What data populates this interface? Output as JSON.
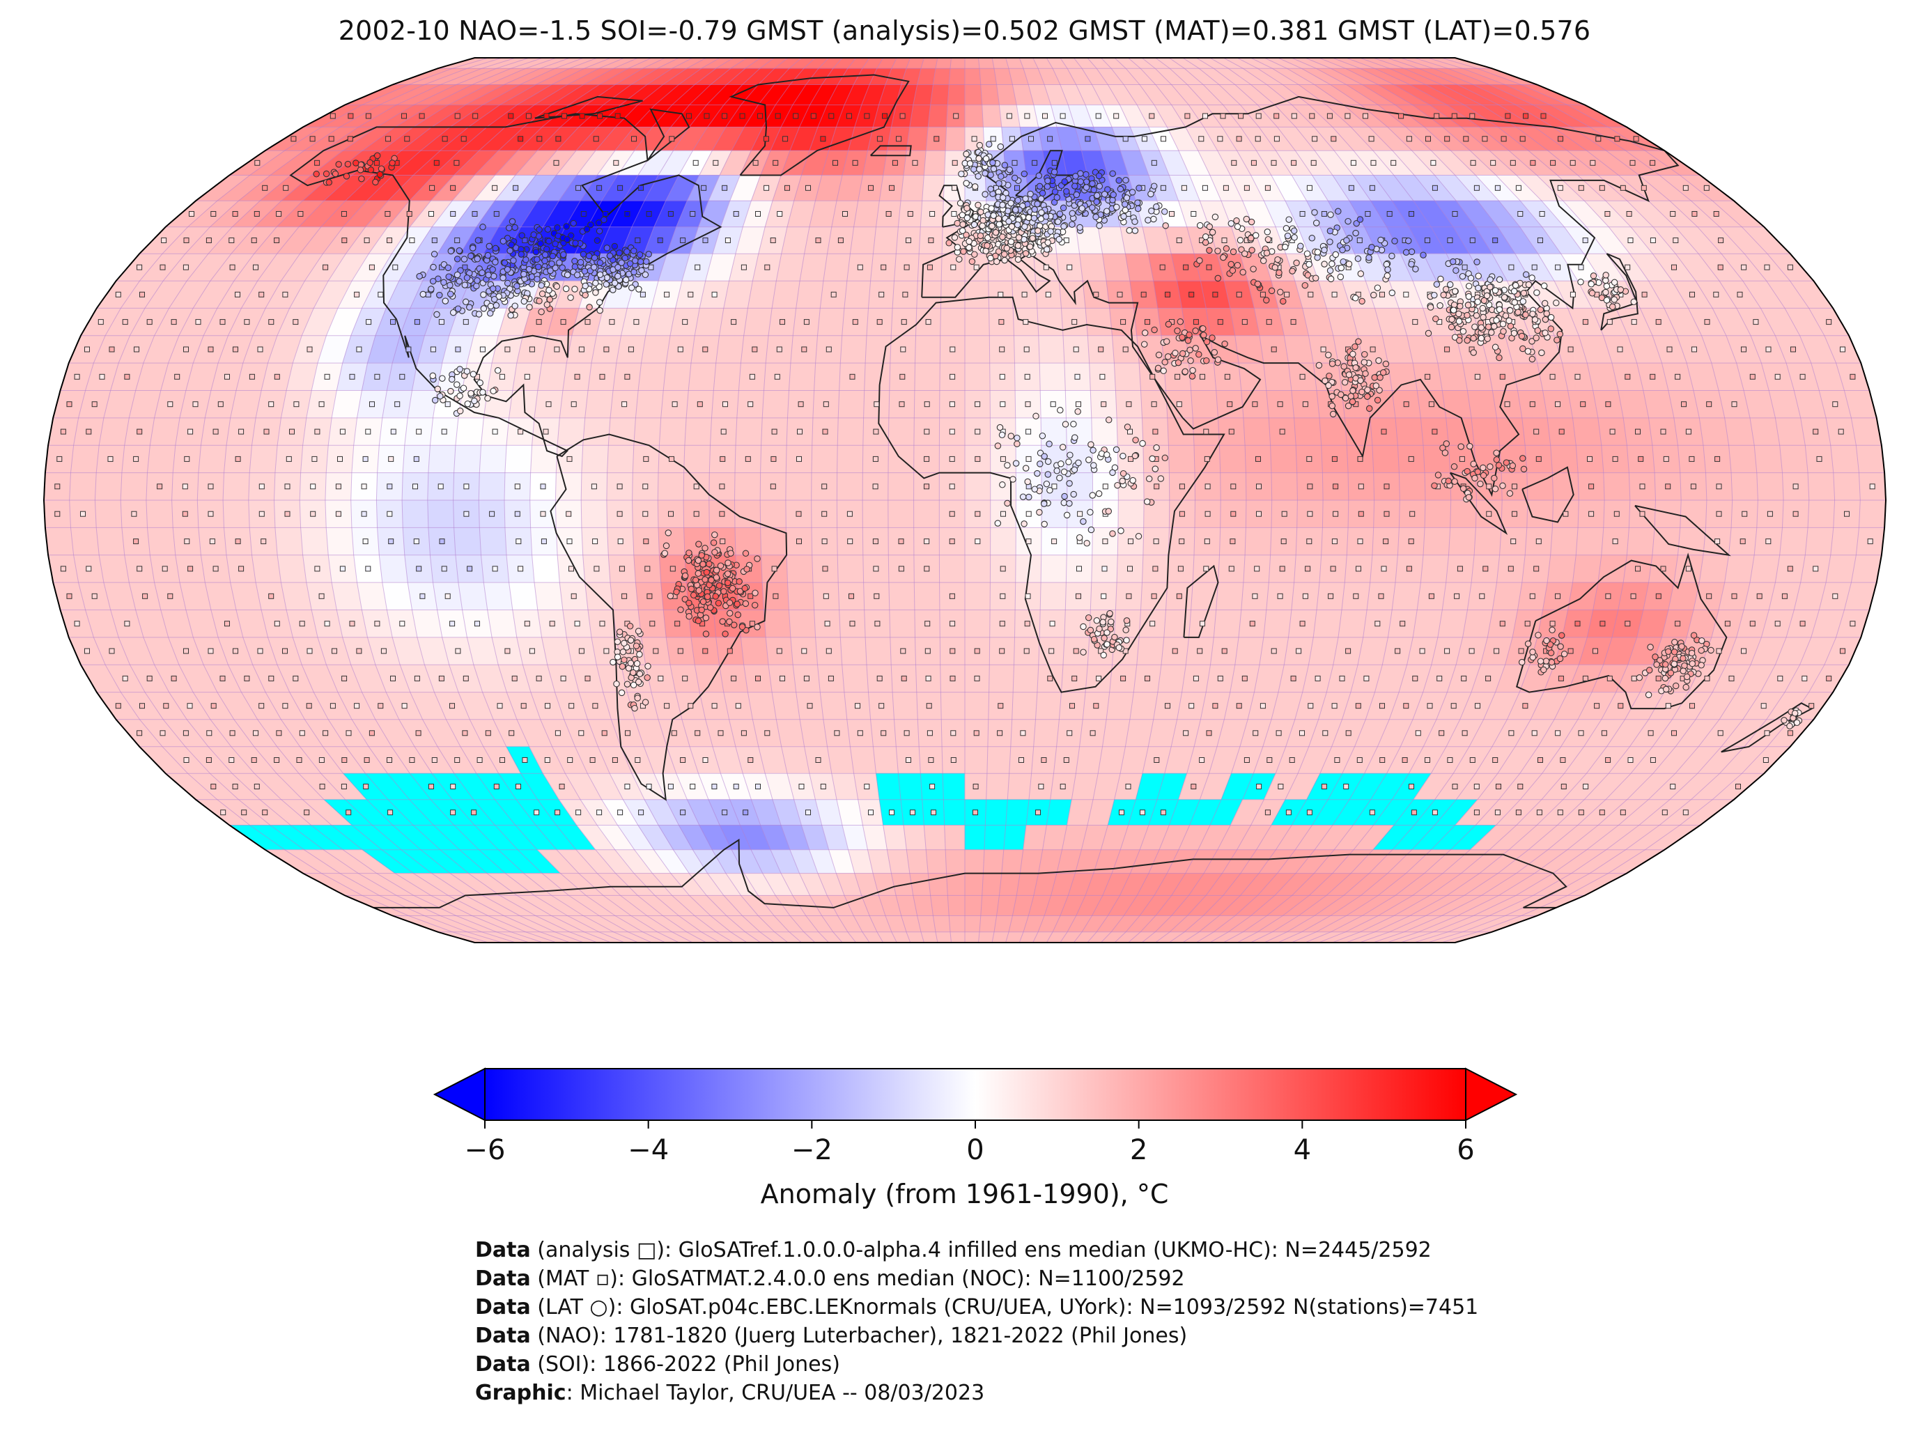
{
  "title": "2002-10 NAO=-1.5 SOI=-0.79 GMST (analysis)=0.502 GMST (MAT)=0.381 GMST (LAT)=0.576",
  "colorbar": {
    "label": "Anomaly (from 1961-1990), °C",
    "ticks": [
      "−6",
      "−4",
      "−2",
      "0",
      "2",
      "4",
      "6"
    ],
    "range": [
      -6,
      6
    ],
    "colors": [
      "#0000ff",
      "#ffffff",
      "#ff0000"
    ],
    "extend": "both"
  },
  "map": {
    "projection": "Robinson",
    "grid_resolution_deg": 5,
    "missing_color": "#00ffff",
    "anomaly_regions": [
      {
        "region": "Greenland / Arctic",
        "anomaly": 5
      },
      {
        "region": "North America (central)",
        "anomaly": -4.5
      },
      {
        "region": "Northeast Europe / Scandinavia",
        "anomaly": -4
      },
      {
        "region": "Central Asia (north)",
        "anomaly": -3.5
      },
      {
        "region": "Middle East",
        "anomaly": 3
      },
      {
        "region": "Central South America",
        "anomaly": 3
      },
      {
        "region": "Antarctic Peninsula",
        "anomaly": -3
      },
      {
        "region": "Southern Ocean",
        "anomaly": "missing"
      }
    ]
  },
  "credits": [
    {
      "bold": "Data",
      "text": " (analysis □): GloSATref.1.0.0.0-alpha.4 infilled ens median (UKMO-HC): N=2445/2592"
    },
    {
      "bold": "Data",
      "text": " (MAT ▫): GloSATMAT.2.4.0.0 ens median (NOC): N=1100/2592"
    },
    {
      "bold": "Data",
      "text": " (LAT ○): GloSAT.p04c.EBC.LEKnormals (CRU/UEA, UYork): N=1093/2592 N(stations)=7451"
    },
    {
      "bold": "Data",
      "text": " (NAO): 1781-1820 (Juerg Luterbacher), 1821-2022 (Phil Jones)"
    },
    {
      "bold": "Data",
      "text": " (SOI): 1866-2022 (Phil Jones)"
    },
    {
      "bold": "Graphic",
      "text": ": Michael Taylor, CRU/UEA -- 08/03/2023"
    }
  ]
}
